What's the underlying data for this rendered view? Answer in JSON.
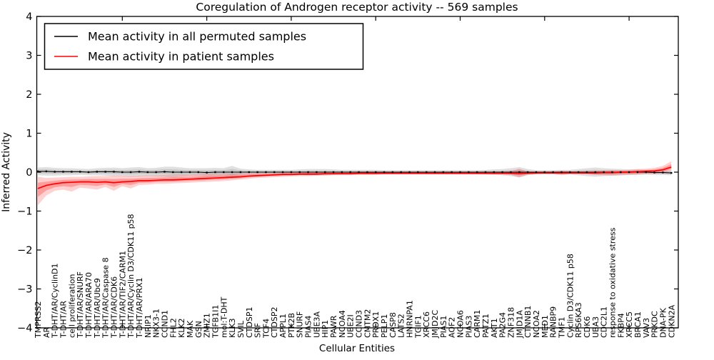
{
  "title": "Coregulation of Androgen receptor activity -- 569 samples",
  "axes": {
    "xlabel": "Cellular Entities",
    "ylabel": "Inferred Activity",
    "yticks": [
      4,
      3,
      2,
      1,
      0,
      -1,
      -2,
      -3,
      -4
    ],
    "ylim": [
      -4,
      4
    ]
  },
  "legend": {
    "items": [
      {
        "label": "Mean activity in all permuted samples",
        "color": "#000000"
      },
      {
        "label": "Mean activity in patient samples",
        "color": "#ff0000"
      }
    ]
  },
  "chart_data": {
    "type": "line",
    "title": "Coregulation of Androgen receptor activity -- 569 samples",
    "xlabel": "Cellular Entities",
    "ylabel": "Inferred Activity",
    "ylim": [
      -4,
      4
    ],
    "grid": false,
    "legend_position": "upper left",
    "categories": [
      "TMPRSS2",
      "AR",
      "T-DHT/AR/CyclinD1",
      "T-DHT/AR",
      "cell proliferation",
      "T-DHT/AR/SNURF",
      "T-DHT/AR/ARA70",
      "T-DHT/AR/Ubc9",
      "T-DHT/AR/Caspase 8",
      "T-DHT/AR/CDK6",
      "T-DHT/AR/TIF2/CARM1",
      "T-DHT/AR/Cyclin D3/CDK11 p58",
      "T-DHT/AR/PRX1",
      "NRIP1",
      "NKX3-1",
      "CCND1",
      "FHL2",
      "KLK2",
      "MAK",
      "GSN",
      "ZMIZ1",
      "TGFB1I1",
      "mol:T-DHT",
      "KLK3",
      "SVIL",
      "CTDSP1",
      "SRF",
      "TCF4",
      "CTDSP2",
      "APPL1",
      "PTK2B",
      "SNURF",
      "PIAS4",
      "UBE3A",
      "HIP1",
      "PAWR",
      "NCOA4",
      "UBE2I",
      "CCND3",
      "CMTM2",
      "PRDX1",
      "PELP1",
      "CASP8",
      "LATS2",
      "HNRNPA1",
      "TGIF1",
      "XRCC6",
      "JMJD2C",
      "PIAS1",
      "AOF2",
      "NCOA6",
      "PIAS3",
      "CARM1",
      "PATZ1",
      "AKT1",
      "PA2G4",
      "ZNF318",
      "JMJD1A",
      "CTNNB1",
      "NCOA2",
      "MED1",
      "RANBP9",
      "TMF1",
      "Cyclin D3/CDK11 p58",
      "RPS6KA3",
      "CDK6",
      "UBA3",
      "CDC2L1",
      "response to oxidative stress",
      "FKBP4",
      "XRCC5",
      "BRCA1",
      "VAV3",
      "PRKDC",
      "DNA-PK",
      "CDKN2A"
    ],
    "series": [
      {
        "name": "Mean activity in all permuted samples",
        "color": "#000000",
        "band_color_outer": "rgba(0,0,0,0.12)",
        "band_color_inner": "rgba(0,0,0,0.10)",
        "markers": true,
        "values": [
          0.02,
          0.02,
          0.01,
          0.01,
          0.01,
          0.01,
          0.0,
          0.01,
          0.01,
          0.01,
          0.0,
          0.0,
          0.01,
          0.0,
          0.0,
          0.01,
          0.0,
          0.0,
          0.0,
          0.0,
          -0.01,
          0.0,
          0.0,
          0.0,
          0.0,
          0.0,
          0.0,
          0.0,
          0.0,
          0.0,
          0.0,
          0.0,
          0.0,
          0.0,
          0.0,
          0.0,
          0.0,
          0.0,
          0.0,
          0.0,
          0.0,
          0.0,
          0.0,
          0.0,
          0.0,
          0.0,
          0.0,
          0.0,
          0.0,
          0.0,
          0.0,
          0.0,
          0.0,
          0.0,
          0.0,
          0.0,
          0.0,
          0.0,
          0.0,
          0.0,
          0.0,
          0.0,
          0.0,
          0.0,
          0.0,
          0.0,
          0.0,
          0.0,
          0.0,
          0.0,
          0.0,
          0.0,
          0.0,
          -0.01,
          -0.01,
          -0.02
        ],
        "band_upper": [
          0.12,
          0.13,
          0.11,
          0.1,
          0.1,
          0.09,
          0.08,
          0.1,
          0.11,
          0.12,
          0.1,
          0.12,
          0.13,
          0.1,
          0.11,
          0.14,
          0.14,
          0.12,
          0.1,
          0.1,
          0.1,
          0.11,
          0.1,
          0.16,
          0.09,
          0.07,
          0.06,
          0.06,
          0.06,
          0.06,
          0.06,
          0.07,
          0.08,
          0.08,
          0.08,
          0.07,
          0.06,
          0.06,
          0.06,
          0.06,
          0.06,
          0.05,
          0.05,
          0.05,
          0.05,
          0.05,
          0.05,
          0.05,
          0.05,
          0.05,
          0.05,
          0.05,
          0.05,
          0.06,
          0.07,
          0.08,
          0.1,
          0.13,
          0.08,
          0.05,
          0.05,
          0.05,
          0.06,
          0.06,
          0.08,
          0.1,
          0.12,
          0.1,
          0.09,
          0.08,
          0.07,
          0.07,
          0.06,
          0.05,
          0.05,
          0.04
        ],
        "band_lower": [
          -0.08,
          -0.09,
          -0.09,
          -0.08,
          -0.08,
          -0.07,
          -0.08,
          -0.08,
          -0.09,
          -0.1,
          -0.1,
          -0.12,
          -0.11,
          -0.1,
          -0.11,
          -0.12,
          -0.14,
          -0.12,
          -0.1,
          -0.1,
          -0.12,
          -0.11,
          -0.1,
          -0.16,
          -0.09,
          -0.07,
          -0.06,
          -0.06,
          -0.06,
          -0.06,
          -0.06,
          -0.07,
          -0.08,
          -0.08,
          -0.08,
          -0.07,
          -0.06,
          -0.06,
          -0.06,
          -0.06,
          -0.06,
          -0.05,
          -0.05,
          -0.05,
          -0.05,
          -0.05,
          -0.05,
          -0.05,
          -0.05,
          -0.05,
          -0.05,
          -0.05,
          -0.05,
          -0.06,
          -0.07,
          -0.08,
          -0.1,
          -0.13,
          -0.08,
          -0.05,
          -0.05,
          -0.05,
          -0.06,
          -0.06,
          -0.08,
          -0.1,
          -0.12,
          -0.1,
          -0.09,
          -0.08,
          -0.07,
          -0.07,
          -0.06,
          -0.07,
          -0.07,
          -0.08
        ]
      },
      {
        "name": "Mean activity in patient samples",
        "color": "#ff0000",
        "band_color_outer": "rgba(255,0,0,0.18)",
        "band_color_inner": "rgba(255,0,0,0.25)",
        "markers": false,
        "values": [
          -0.42,
          -0.34,
          -0.3,
          -0.27,
          -0.26,
          -0.25,
          -0.25,
          -0.26,
          -0.25,
          -0.27,
          -0.25,
          -0.24,
          -0.22,
          -0.22,
          -0.21,
          -0.2,
          -0.2,
          -0.19,
          -0.18,
          -0.17,
          -0.16,
          -0.15,
          -0.14,
          -0.13,
          -0.12,
          -0.1,
          -0.09,
          -0.08,
          -0.07,
          -0.06,
          -0.06,
          -0.05,
          -0.05,
          -0.05,
          -0.04,
          -0.04,
          -0.04,
          -0.04,
          -0.03,
          -0.03,
          -0.03,
          -0.03,
          -0.03,
          -0.03,
          -0.03,
          -0.03,
          -0.03,
          -0.03,
          -0.03,
          -0.03,
          -0.03,
          -0.03,
          -0.03,
          -0.03,
          -0.03,
          -0.03,
          -0.03,
          -0.03,
          -0.03,
          -0.02,
          -0.02,
          -0.02,
          -0.02,
          -0.02,
          -0.02,
          -0.02,
          -0.02,
          -0.01,
          -0.01,
          0.0,
          0.0,
          0.01,
          0.02,
          0.03,
          0.06,
          0.13
        ],
        "band_upper": [
          -0.12,
          -0.15,
          -0.14,
          -0.13,
          -0.12,
          -0.12,
          -0.11,
          -0.1,
          -0.1,
          -0.09,
          -0.09,
          -0.1,
          -0.09,
          -0.08,
          -0.08,
          -0.07,
          -0.07,
          -0.06,
          -0.06,
          -0.05,
          -0.04,
          -0.04,
          -0.04,
          -0.04,
          -0.03,
          -0.03,
          -0.02,
          -0.02,
          -0.02,
          -0.01,
          -0.01,
          -0.01,
          0.0,
          0.0,
          0.0,
          0.0,
          0.01,
          0.01,
          0.01,
          0.01,
          0.01,
          0.01,
          0.01,
          0.01,
          0.01,
          0.01,
          0.01,
          0.01,
          0.01,
          0.01,
          0.01,
          0.01,
          0.01,
          0.01,
          0.01,
          0.01,
          0.02,
          0.09,
          0.01,
          0.01,
          0.01,
          0.01,
          0.03,
          0.02,
          0.02,
          0.02,
          0.03,
          0.04,
          0.05,
          0.05,
          0.06,
          0.08,
          0.09,
          0.11,
          0.16,
          0.28
        ],
        "band_lower": [
          -0.85,
          -0.6,
          -0.48,
          -0.45,
          -0.5,
          -0.4,
          -0.42,
          -0.45,
          -0.38,
          -0.48,
          -0.36,
          -0.42,
          -0.33,
          -0.32,
          -0.3,
          -0.3,
          -0.29,
          -0.28,
          -0.27,
          -0.26,
          -0.25,
          -0.24,
          -0.23,
          -0.21,
          -0.19,
          -0.17,
          -0.15,
          -0.14,
          -0.13,
          -0.12,
          -0.11,
          -0.1,
          -0.1,
          -0.09,
          -0.09,
          -0.08,
          -0.08,
          -0.08,
          -0.07,
          -0.07,
          -0.07,
          -0.06,
          -0.06,
          -0.06,
          -0.06,
          -0.06,
          -0.06,
          -0.06,
          -0.06,
          -0.06,
          -0.06,
          -0.06,
          -0.06,
          -0.06,
          -0.06,
          -0.06,
          -0.07,
          -0.14,
          -0.06,
          -0.06,
          -0.05,
          -0.05,
          -0.08,
          -0.05,
          -0.05,
          -0.05,
          -0.07,
          -0.08,
          -0.09,
          -0.08,
          -0.07,
          -0.06,
          -0.05,
          -0.04,
          -0.02,
          0.02
        ]
      }
    ]
  }
}
